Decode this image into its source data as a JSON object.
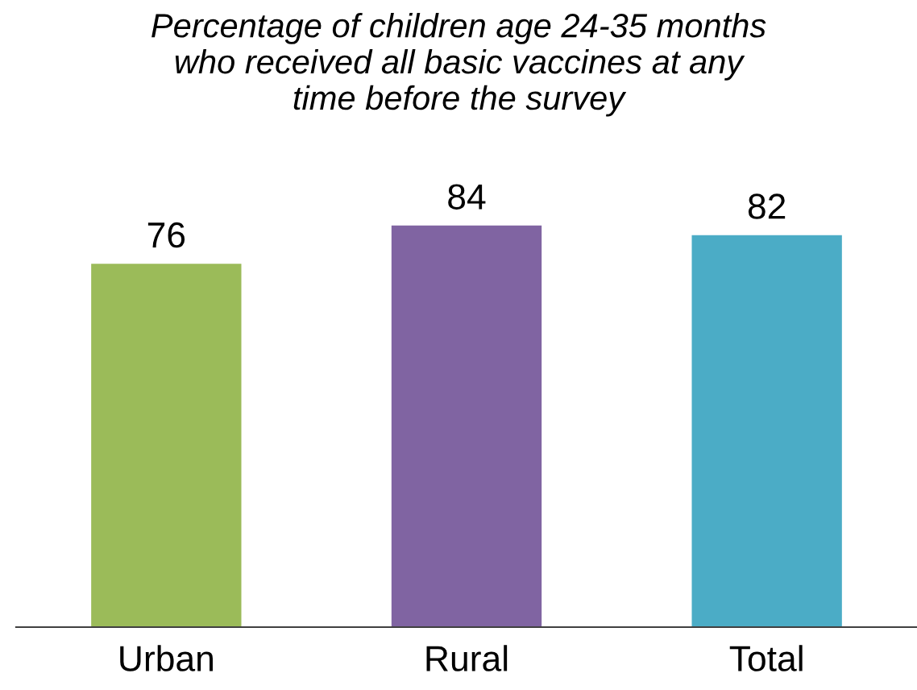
{
  "chart_data": {
    "type": "bar",
    "title": "Percentage of children age 24-35 months\nwho received all basic vaccines at any\ntime before the survey",
    "categories": [
      "Urban",
      "Rural",
      "Total"
    ],
    "values": [
      76,
      84,
      82
    ],
    "colors": [
      "#9bbb59",
      "#8064a2",
      "#4bacc6"
    ],
    "data_labels": true,
    "grid": false,
    "legend": false
  }
}
